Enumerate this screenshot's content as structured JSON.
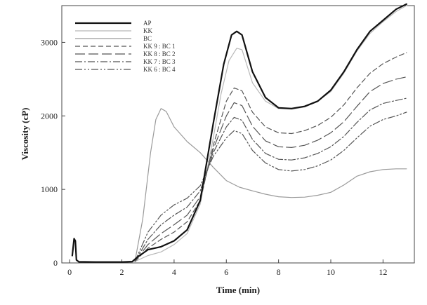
{
  "chart_data": {
    "type": "line",
    "title": "",
    "xlabel": "Time (min)",
    "ylabel": "Viscosity (cP)",
    "xlim": [
      -0.3,
      13.2
    ],
    "ylim": [
      0,
      3500
    ],
    "xticks": [
      0,
      2,
      4,
      6,
      8,
      10,
      12
    ],
    "yticks": [
      0,
      1000,
      2000,
      3000
    ],
    "grid": false,
    "legend_position": "top-left",
    "series": [
      {
        "name": "AP",
        "color": "#111111",
        "dash": "",
        "width": 2.2,
        "points": [
          [
            0.1,
            100
          ],
          [
            0.17,
            330
          ],
          [
            0.22,
            300
          ],
          [
            0.26,
            40
          ],
          [
            0.35,
            15
          ],
          [
            1,
            12
          ],
          [
            2,
            12
          ],
          [
            2.4,
            18
          ],
          [
            2.6,
            80
          ],
          [
            3,
            180
          ],
          [
            3.5,
            220
          ],
          [
            4,
            300
          ],
          [
            4.5,
            450
          ],
          [
            5,
            850
          ],
          [
            5.5,
            1900
          ],
          [
            5.9,
            2700
          ],
          [
            6.2,
            3100
          ],
          [
            6.4,
            3150
          ],
          [
            6.6,
            3100
          ],
          [
            7,
            2600
          ],
          [
            7.5,
            2250
          ],
          [
            8,
            2110
          ],
          [
            8.5,
            2100
          ],
          [
            9,
            2130
          ],
          [
            9.5,
            2200
          ],
          [
            10,
            2350
          ],
          [
            10.5,
            2600
          ],
          [
            11,
            2900
          ],
          [
            11.5,
            3150
          ],
          [
            12,
            3300
          ],
          [
            12.5,
            3450
          ],
          [
            12.9,
            3520
          ]
        ]
      },
      {
        "name": "KK",
        "color": "#b8b8b8",
        "dash": "",
        "width": 1.2,
        "points": [
          [
            2.5,
            20
          ],
          [
            3,
            100
          ],
          [
            3.5,
            150
          ],
          [
            4,
            250
          ],
          [
            4.5,
            400
          ],
          [
            5,
            800
          ],
          [
            5.5,
            1700
          ],
          [
            5.8,
            2300
          ],
          [
            6.1,
            2750
          ],
          [
            6.4,
            2920
          ],
          [
            6.6,
            2900
          ],
          [
            7,
            2450
          ],
          [
            7.5,
            2200
          ],
          [
            8,
            2100
          ],
          [
            8.5,
            2090
          ],
          [
            9,
            2120
          ],
          [
            9.5,
            2200
          ],
          [
            10,
            2330
          ],
          [
            10.5,
            2580
          ],
          [
            11,
            2880
          ],
          [
            11.5,
            3120
          ],
          [
            12,
            3280
          ],
          [
            12.5,
            3420
          ],
          [
            12.9,
            3500
          ]
        ]
      },
      {
        "name": "BC",
        "color": "#9a9a9a",
        "dash": "",
        "width": 1.2,
        "points": [
          [
            2.5,
            20
          ],
          [
            2.8,
            600
          ],
          [
            3.1,
            1500
          ],
          [
            3.3,
            1950
          ],
          [
            3.5,
            2100
          ],
          [
            3.7,
            2060
          ],
          [
            4,
            1850
          ],
          [
            4.5,
            1650
          ],
          [
            5,
            1500
          ],
          [
            5.5,
            1300
          ],
          [
            6,
            1120
          ],
          [
            6.5,
            1030
          ],
          [
            7,
            980
          ],
          [
            7.5,
            935
          ],
          [
            8,
            900
          ],
          [
            8.5,
            890
          ],
          [
            9,
            895
          ],
          [
            9.5,
            920
          ],
          [
            10,
            960
          ],
          [
            10.5,
            1060
          ],
          [
            11,
            1180
          ],
          [
            11.5,
            1240
          ],
          [
            12,
            1270
          ],
          [
            12.5,
            1280
          ],
          [
            12.9,
            1280
          ]
        ]
      },
      {
        "name": "KK 9 : BC 1",
        "color": "#555555",
        "dash": "7,4",
        "width": 1.2,
        "points": [
          [
            2.5,
            20
          ],
          [
            3,
            200
          ],
          [
            3.5,
            320
          ],
          [
            4,
            420
          ],
          [
            4.5,
            560
          ],
          [
            5,
            850
          ],
          [
            5.5,
            1600
          ],
          [
            6,
            2200
          ],
          [
            6.3,
            2380
          ],
          [
            6.6,
            2340
          ],
          [
            7,
            2050
          ],
          [
            7.5,
            1850
          ],
          [
            8,
            1770
          ],
          [
            8.5,
            1760
          ],
          [
            9,
            1800
          ],
          [
            9.5,
            1870
          ],
          [
            10,
            1980
          ],
          [
            10.5,
            2150
          ],
          [
            11,
            2380
          ],
          [
            11.5,
            2580
          ],
          [
            12,
            2710
          ],
          [
            12.5,
            2800
          ],
          [
            12.9,
            2860
          ]
        ]
      },
      {
        "name": "KK 8 : BC 2",
        "color": "#555555",
        "dash": "14,5",
        "width": 1.2,
        "points": [
          [
            2.5,
            20
          ],
          [
            3,
            250
          ],
          [
            3.5,
            400
          ],
          [
            4,
            520
          ],
          [
            4.5,
            650
          ],
          [
            5,
            900
          ],
          [
            5.5,
            1550
          ],
          [
            6,
            2000
          ],
          [
            6.3,
            2180
          ],
          [
            6.6,
            2140
          ],
          [
            7,
            1860
          ],
          [
            7.5,
            1660
          ],
          [
            8,
            1580
          ],
          [
            8.5,
            1570
          ],
          [
            9,
            1600
          ],
          [
            9.5,
            1670
          ],
          [
            10,
            1770
          ],
          [
            10.5,
            1920
          ],
          [
            11,
            2130
          ],
          [
            11.5,
            2330
          ],
          [
            12,
            2440
          ],
          [
            12.5,
            2500
          ],
          [
            12.9,
            2530
          ]
        ]
      },
      {
        "name": "KK 7 : BC 3",
        "color": "#555555",
        "dash": "10,3,2,3",
        "width": 1.2,
        "points": [
          [
            2.5,
            20
          ],
          [
            3,
            320
          ],
          [
            3.5,
            520
          ],
          [
            4,
            650
          ],
          [
            4.5,
            760
          ],
          [
            5,
            980
          ],
          [
            5.5,
            1500
          ],
          [
            6,
            1850
          ],
          [
            6.3,
            1980
          ],
          [
            6.6,
            1940
          ],
          [
            7,
            1680
          ],
          [
            7.5,
            1490
          ],
          [
            8,
            1410
          ],
          [
            8.5,
            1400
          ],
          [
            9,
            1430
          ],
          [
            9.5,
            1490
          ],
          [
            10,
            1580
          ],
          [
            10.5,
            1720
          ],
          [
            11,
            1910
          ],
          [
            11.5,
            2080
          ],
          [
            12,
            2170
          ],
          [
            12.5,
            2210
          ],
          [
            12.9,
            2240
          ]
        ]
      },
      {
        "name": "KK 6 : BC 4",
        "color": "#555555",
        "dash": "10,3,2,3,2,3",
        "width": 1.2,
        "points": [
          [
            2.5,
            20
          ],
          [
            3,
            420
          ],
          [
            3.5,
            650
          ],
          [
            4,
            790
          ],
          [
            4.5,
            880
          ],
          [
            5,
            1050
          ],
          [
            5.5,
            1450
          ],
          [
            6,
            1700
          ],
          [
            6.3,
            1800
          ],
          [
            6.6,
            1760
          ],
          [
            7,
            1530
          ],
          [
            7.5,
            1360
          ],
          [
            8,
            1270
          ],
          [
            8.5,
            1250
          ],
          [
            9,
            1270
          ],
          [
            9.5,
            1320
          ],
          [
            10,
            1400
          ],
          [
            10.5,
            1530
          ],
          [
            11,
            1700
          ],
          [
            11.5,
            1860
          ],
          [
            12,
            1950
          ],
          [
            12.5,
            2000
          ],
          [
            12.9,
            2050
          ]
        ]
      }
    ]
  }
}
